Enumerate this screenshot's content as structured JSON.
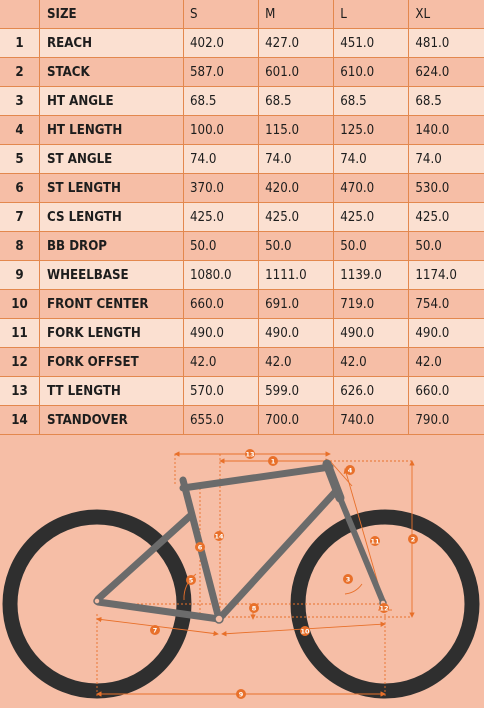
{
  "table": {
    "header": {
      "label": "SIZE",
      "sizes": [
        "S",
        "M",
        "L",
        "XL"
      ]
    },
    "rows": [
      {
        "n": "1",
        "label": "REACH",
        "values": [
          "402.0",
          "427.0",
          "451.0",
          "481.0"
        ]
      },
      {
        "n": "2",
        "label": "STACK",
        "values": [
          "587.0",
          "601.0",
          "610.0",
          "624.0"
        ]
      },
      {
        "n": "3",
        "label": "HT ANGLE",
        "values": [
          "68.5",
          "68.5",
          "68.5",
          "68.5"
        ]
      },
      {
        "n": "4",
        "label": "HT LENGTH",
        "values": [
          "100.0",
          "115.0",
          "125.0",
          "140.0"
        ]
      },
      {
        "n": "5",
        "label": "ST ANGLE",
        "values": [
          "74.0",
          "74.0",
          "74.0",
          "74.0"
        ]
      },
      {
        "n": "6",
        "label": "ST LENGTH",
        "values": [
          "370.0",
          "420.0",
          "470.0",
          "530.0"
        ]
      },
      {
        "n": "7",
        "label": "CS LENGTH",
        "values": [
          "425.0",
          "425.0",
          "425.0",
          "425.0"
        ]
      },
      {
        "n": "8",
        "label": "BB DROP",
        "values": [
          "50.0",
          "50.0",
          "50.0",
          "50.0"
        ]
      },
      {
        "n": "9",
        "label": "WHEELBASE",
        "values": [
          "1080.0",
          "1111.0",
          "1139.0",
          "1174.0"
        ]
      },
      {
        "n": "10",
        "label": "FRONT CENTER",
        "values": [
          "660.0",
          "691.0",
          "719.0",
          "754.0"
        ]
      },
      {
        "n": "11",
        "label": "FORK LENGTH",
        "values": [
          "490.0",
          "490.0",
          "490.0",
          "490.0"
        ]
      },
      {
        "n": "12",
        "label": "FORK OFFSET",
        "values": [
          "42.0",
          "42.0",
          "42.0",
          "42.0"
        ]
      },
      {
        "n": "13",
        "label": "TT LENGTH",
        "values": [
          "570.0",
          "599.0",
          "626.0",
          "660.0"
        ]
      },
      {
        "n": "14",
        "label": "STANDOVER",
        "values": [
          "655.0",
          "700.0",
          "740.0",
          "790.0"
        ]
      }
    ]
  },
  "diagram": {
    "markers": [
      "1",
      "2",
      "3",
      "4",
      "5",
      "6",
      "7",
      "8",
      "9",
      "10",
      "11",
      "12",
      "13",
      "14"
    ],
    "colors": {
      "frame": "#6b6b6b",
      "tire": "#2f2f2f",
      "dimension": "#e8702a",
      "background": "#f6bea6"
    }
  }
}
